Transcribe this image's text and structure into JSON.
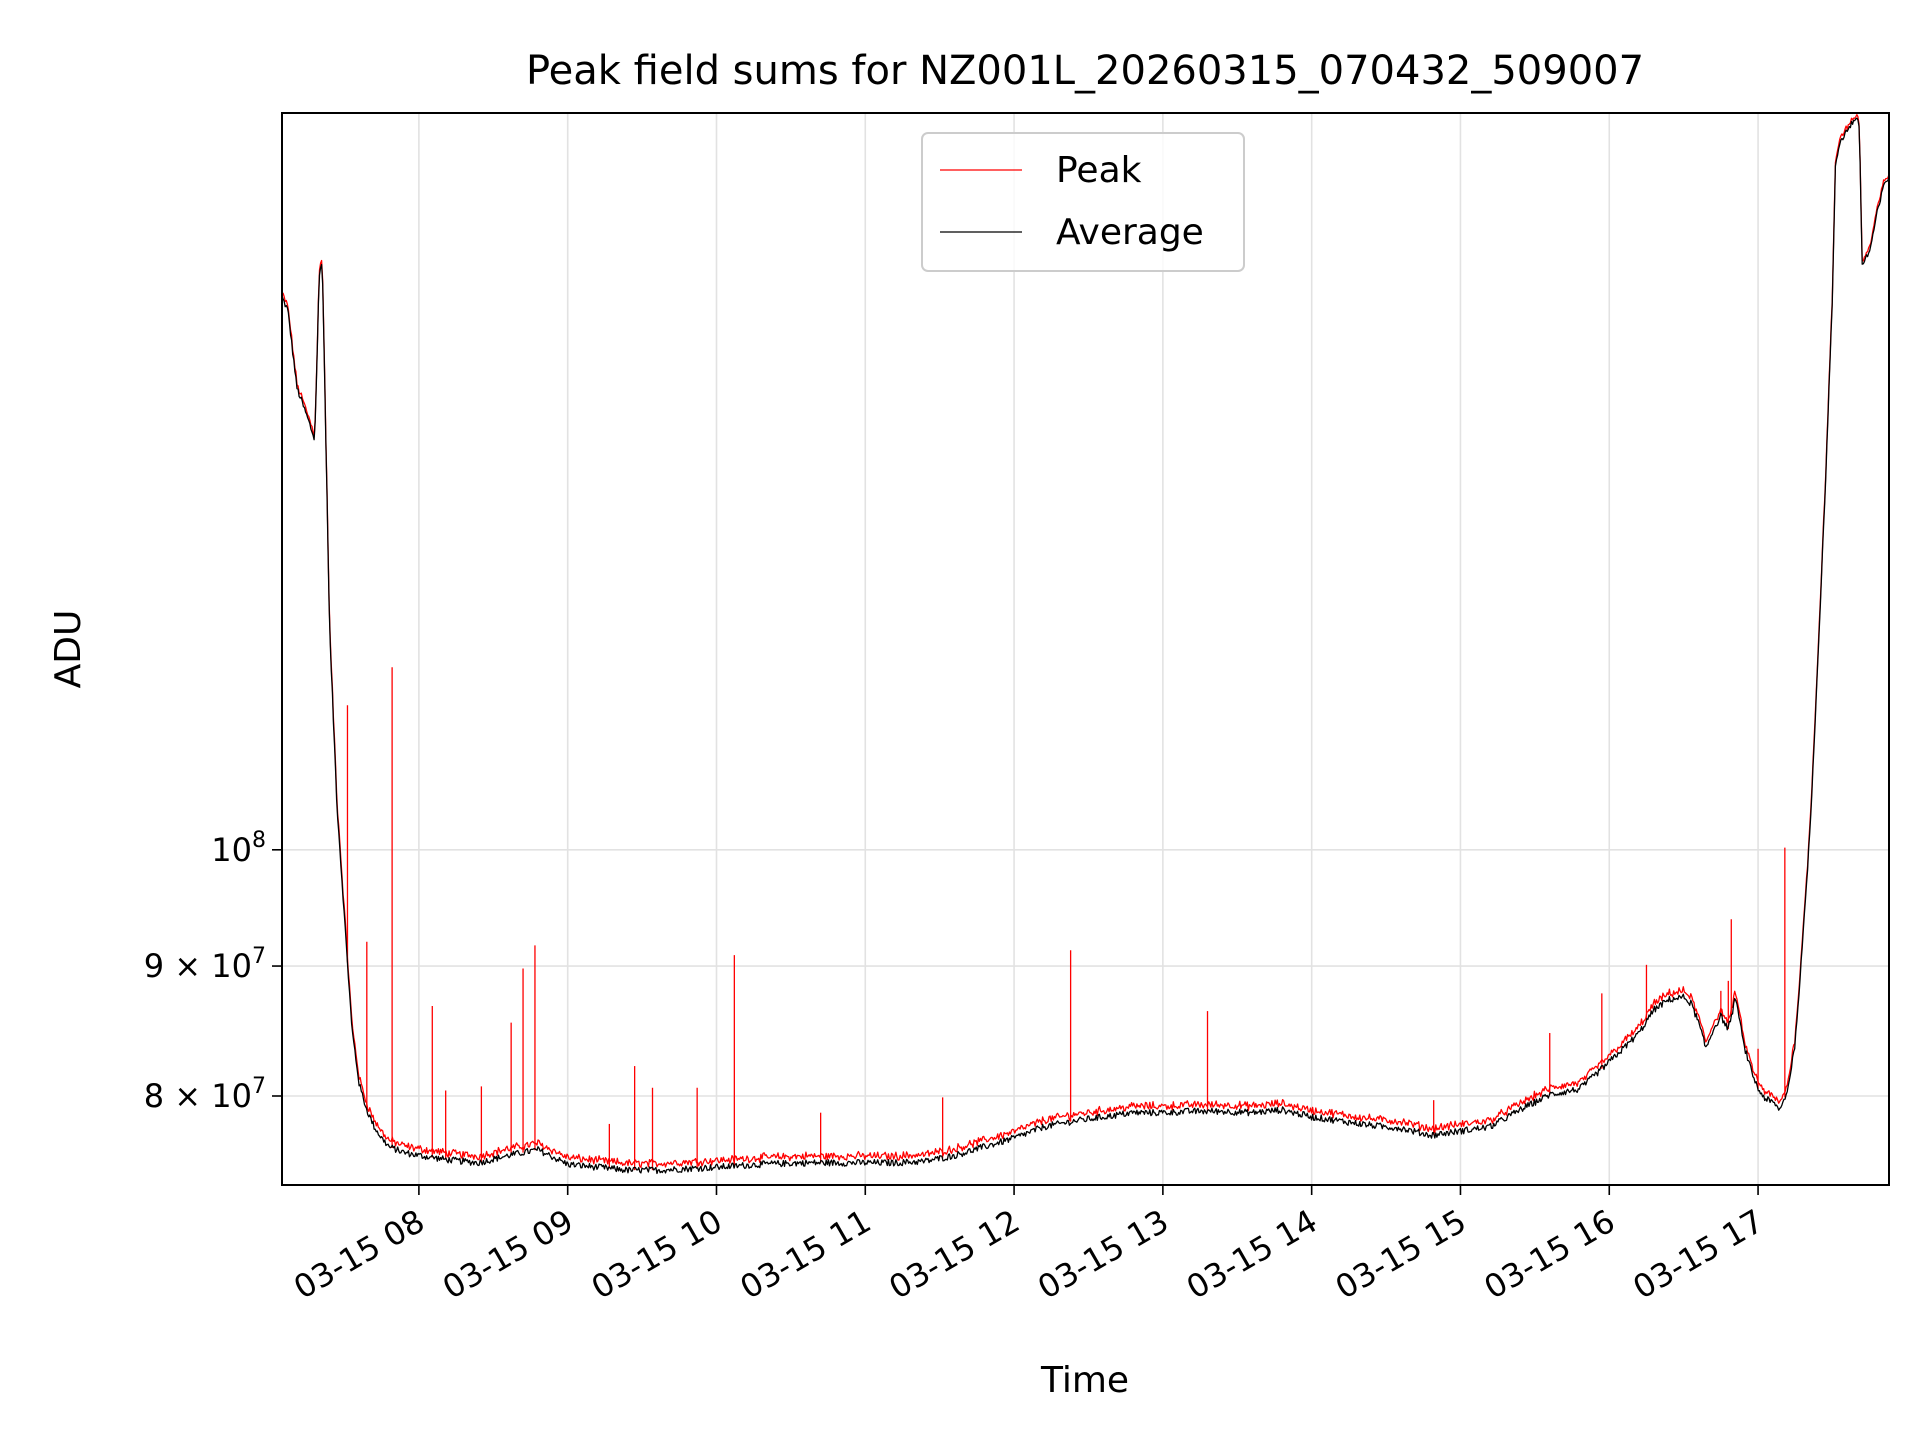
{
  "chart_data": {
    "type": "line",
    "title": "Peak field sums for NZ001L_20260315_070432_509007",
    "xlabel": "Time",
    "ylabel": "ADU",
    "yscale": "log",
    "grid": true,
    "legend_position": "upper-center",
    "x_unit": "hours since 03-15 00:00",
    "xlim": [
      7.08,
      17.88
    ],
    "ylim": [
      73800000,
      195000000
    ],
    "x_ticks": [
      {
        "value": 8,
        "label": "03-15 08"
      },
      {
        "value": 9,
        "label": "03-15 09"
      },
      {
        "value": 10,
        "label": "03-15 10"
      },
      {
        "value": 11,
        "label": "03-15 11"
      },
      {
        "value": 12,
        "label": "03-15 12"
      },
      {
        "value": 13,
        "label": "03-15 13"
      },
      {
        "value": 14,
        "label": "03-15 14"
      },
      {
        "value": 15,
        "label": "03-15 15"
      },
      {
        "value": 16,
        "label": "03-15 16"
      },
      {
        "value": 17,
        "label": "03-15 17"
      }
    ],
    "y_ticks": [
      {
        "value": 80000000,
        "mantissa": "8",
        "base": "10",
        "exp": "7",
        "label": "8 × 10^7"
      },
      {
        "value": 90000000,
        "mantissa": "9",
        "base": "10",
        "exp": "7",
        "label": "9 × 10^7"
      },
      {
        "value": 100000000,
        "mantissa": "",
        "base": "10",
        "exp": "8",
        "label": "10^8"
      }
    ],
    "baseline": {
      "x": [
        7.08,
        7.12,
        7.18,
        7.25,
        7.3,
        7.33,
        7.35,
        7.38,
        7.4,
        7.45,
        7.5,
        7.55,
        7.6,
        7.65,
        7.7,
        7.75,
        7.8,
        7.9,
        8.0,
        8.2,
        8.4,
        8.6,
        8.8,
        9.0,
        9.2,
        9.4,
        9.6,
        9.8,
        10.0,
        10.3,
        10.6,
        10.9,
        11.2,
        11.4,
        11.6,
        11.8,
        12.0,
        12.2,
        12.4,
        12.6,
        12.8,
        13.0,
        13.2,
        13.4,
        13.6,
        13.8,
        14.0,
        14.2,
        14.4,
        14.6,
        14.8,
        15.0,
        15.2,
        15.4,
        15.6,
        15.8,
        16.0,
        16.2,
        16.3,
        16.4,
        16.5,
        16.55,
        16.6,
        16.65,
        16.7,
        16.75,
        16.8,
        16.85,
        16.9,
        16.95,
        17.0,
        17.05,
        17.1,
        17.15,
        17.2,
        17.25,
        17.3,
        17.35,
        17.4,
        17.45,
        17.5,
        17.52,
        17.55,
        17.6,
        17.65,
        17.68,
        17.7,
        17.75,
        17.8,
        17.85,
        17.88
      ],
      "avg": [
        165000000,
        163000000,
        152000000,
        148000000,
        145000000,
        168000000,
        171000000,
        140000000,
        122000000,
        104000000,
        94000000,
        85000000,
        80800000,
        79000000,
        77800000,
        77000000,
        76400000,
        76000000,
        75800000,
        75500000,
        75300000,
        75800000,
        76200000,
        75200000,
        75000000,
        74800000,
        74800000,
        74900000,
        75000000,
        75200000,
        75300000,
        75300000,
        75300000,
        75400000,
        75800000,
        76400000,
        77000000,
        77800000,
        78200000,
        78500000,
        78800000,
        78800000,
        78900000,
        78900000,
        78800000,
        79000000,
        78500000,
        78200000,
        77900000,
        77700000,
        77200000,
        77500000,
        77800000,
        79000000,
        80100000,
        80500000,
        82500000,
        84700000,
        86500000,
        87300000,
        87500000,
        87000000,
        85500000,
        83500000,
        85000000,
        86000000,
        85000000,
        87500000,
        84000000,
        82000000,
        80500000,
        79800000,
        79500000,
        79000000,
        80500000,
        84000000,
        92000000,
        102000000,
        118000000,
        138000000,
        165000000,
        186000000,
        190000000,
        192000000,
        194000000,
        193000000,
        170000000,
        172000000,
        178000000,
        183000000,
        184000000
      ],
      "peak_offset": 350000
    },
    "series": [
      {
        "name": "Peak",
        "color": "#ff0000",
        "line_width": 1.3
      },
      {
        "name": "Average",
        "color": "#000000",
        "line_width": 1.3
      }
    ],
    "peak_spikes": [
      {
        "x": 7.52,
        "value": 114000000
      },
      {
        "x": 7.65,
        "value": 92000000
      },
      {
        "x": 7.82,
        "value": 118000000
      },
      {
        "x": 8.09,
        "value": 86800000
      },
      {
        "x": 8.18,
        "value": 80400000
      },
      {
        "x": 8.42,
        "value": 80700000
      },
      {
        "x": 8.62,
        "value": 85500000
      },
      {
        "x": 8.7,
        "value": 89800000
      },
      {
        "x": 8.78,
        "value": 91700000
      },
      {
        "x": 9.28,
        "value": 78000000
      },
      {
        "x": 9.45,
        "value": 82200000
      },
      {
        "x": 9.57,
        "value": 80600000
      },
      {
        "x": 9.87,
        "value": 80600000
      },
      {
        "x": 10.12,
        "value": 90900000
      },
      {
        "x": 10.7,
        "value": 78800000
      },
      {
        "x": 11.52,
        "value": 79900000
      },
      {
        "x": 12.38,
        "value": 91300000
      },
      {
        "x": 13.3,
        "value": 86400000
      },
      {
        "x": 14.82,
        "value": 79700000
      },
      {
        "x": 15.6,
        "value": 84700000
      },
      {
        "x": 15.95,
        "value": 87800000
      },
      {
        "x": 16.25,
        "value": 90100000
      },
      {
        "x": 16.75,
        "value": 88000000
      },
      {
        "x": 16.8,
        "value": 88800000
      },
      {
        "x": 16.82,
        "value": 93900000
      },
      {
        "x": 17.0,
        "value": 83500000
      },
      {
        "x": 17.18,
        "value": 100200000
      }
    ],
    "legend": [
      {
        "name": "Peak",
        "color": "#ff0000"
      },
      {
        "name": "Average",
        "color": "#000000"
      }
    ]
  }
}
